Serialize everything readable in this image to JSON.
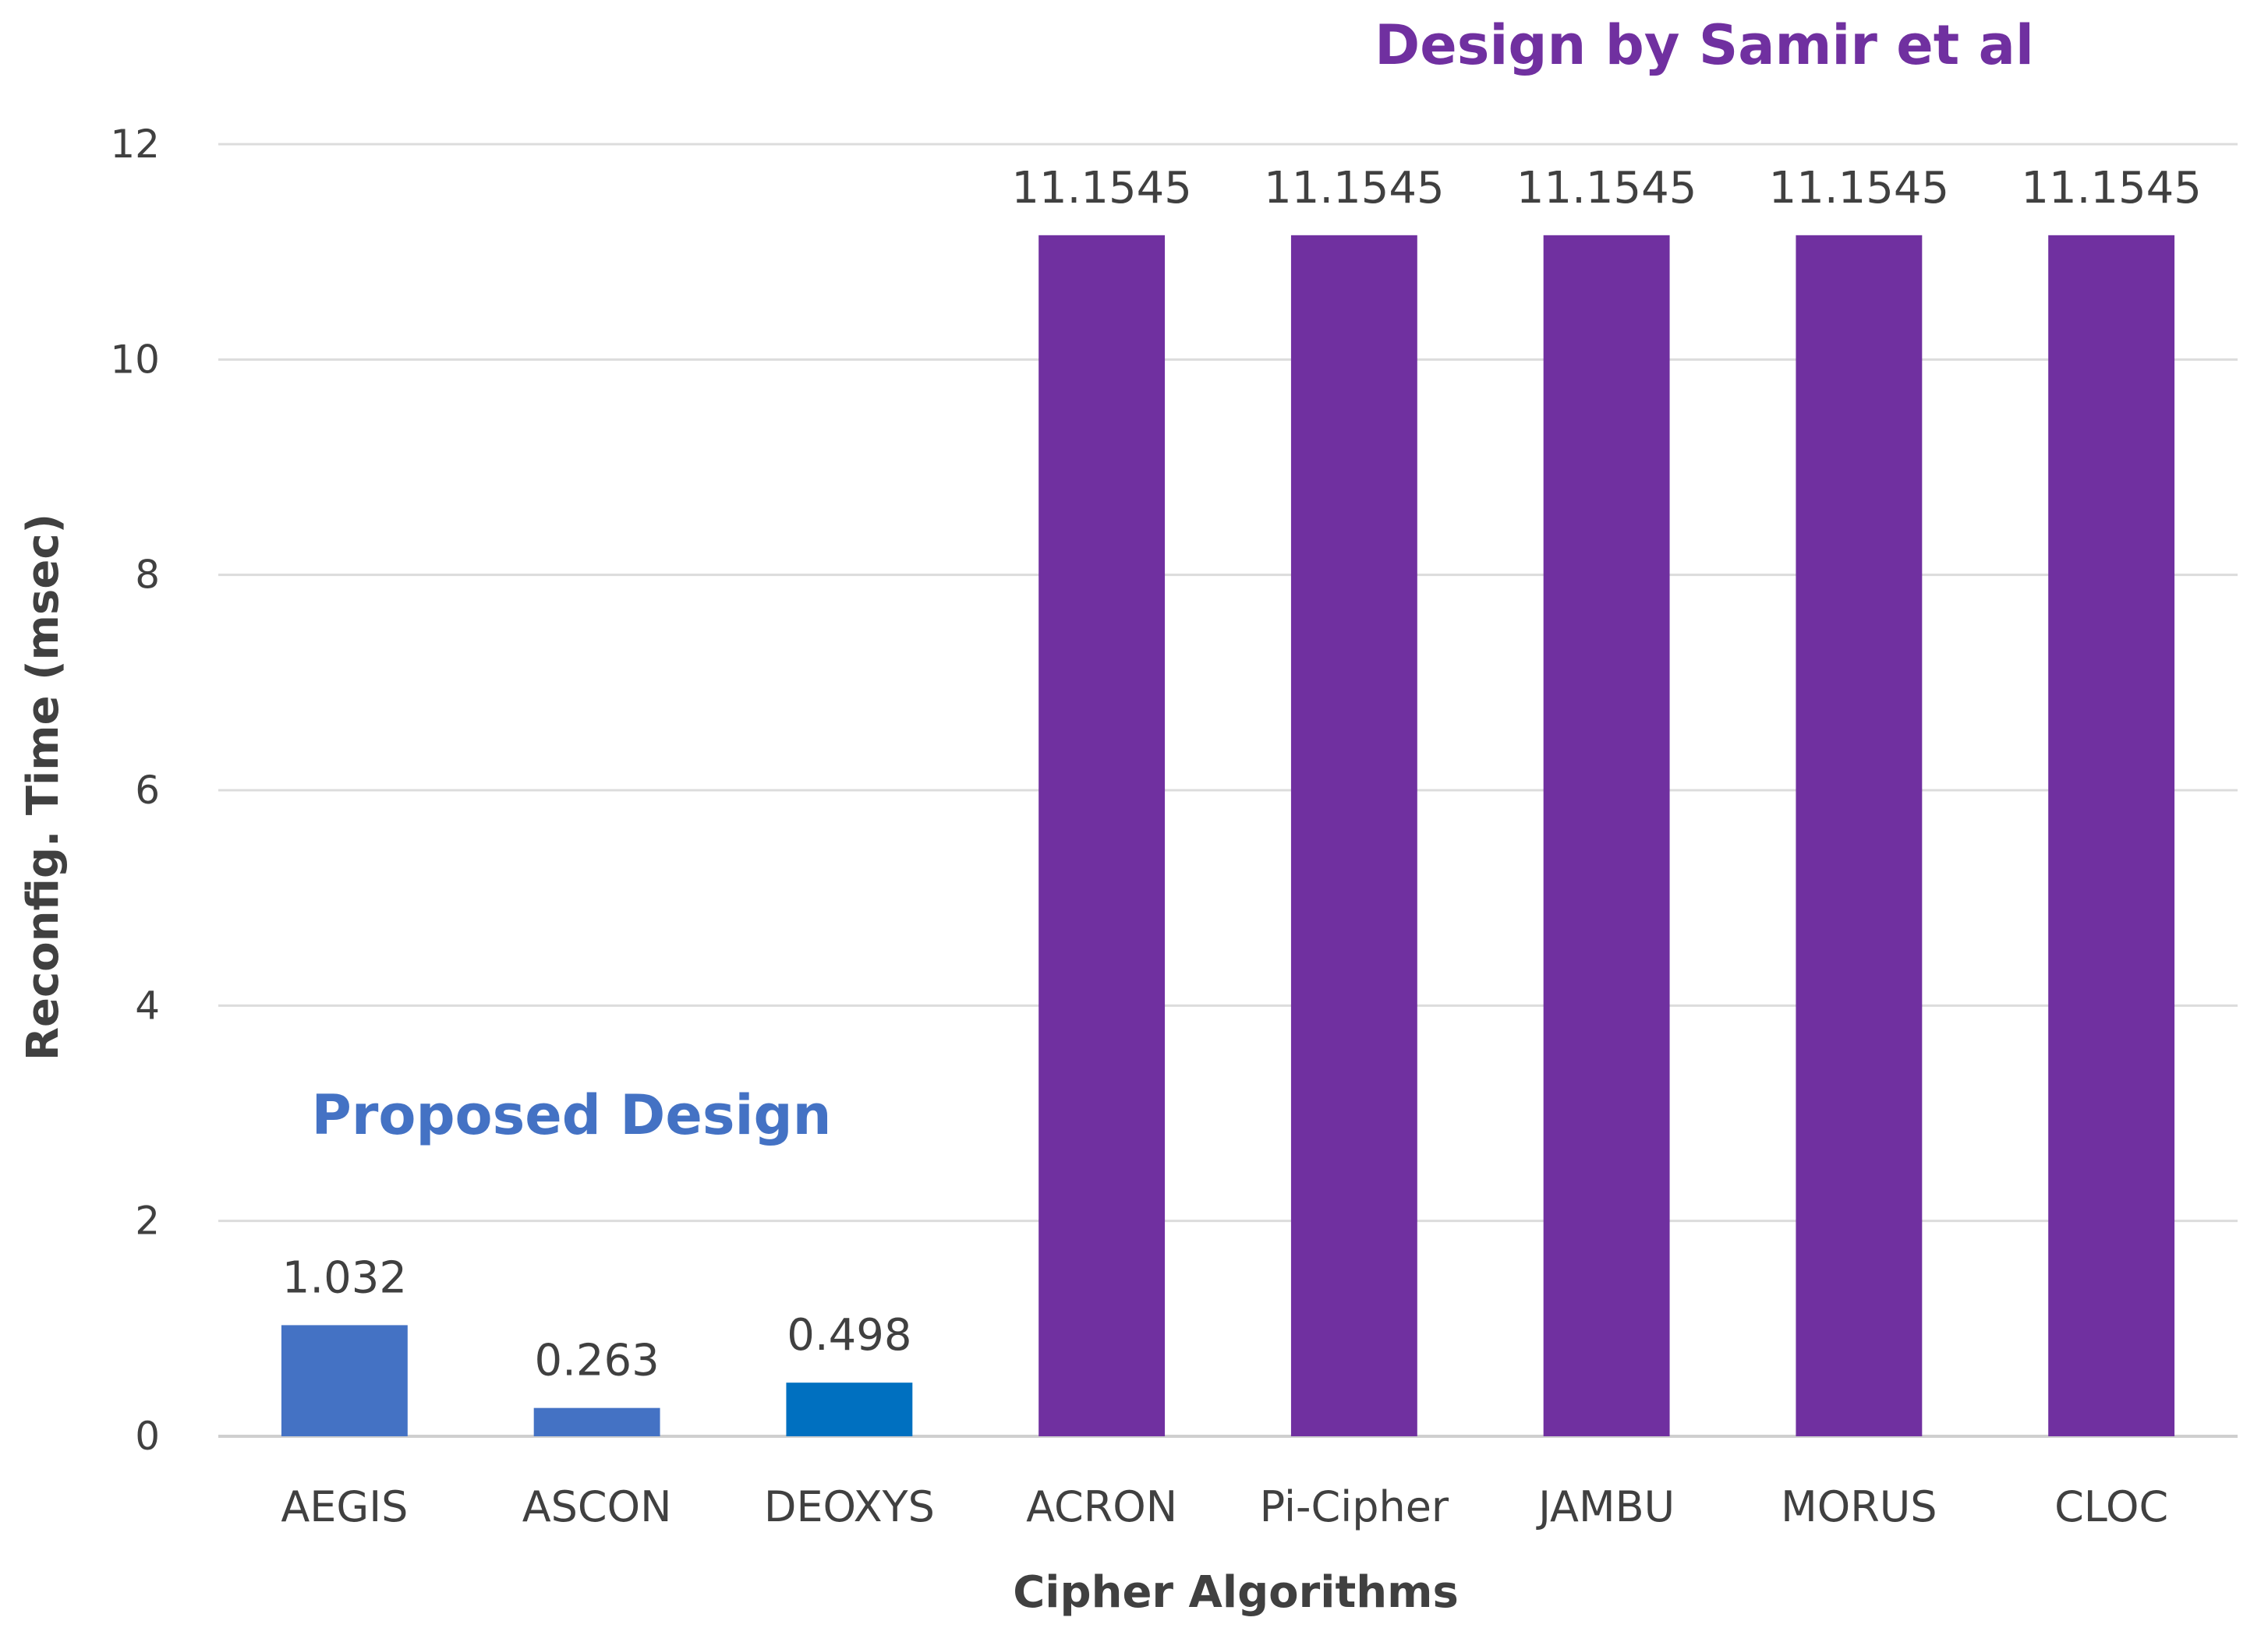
{
  "chart_data": {
    "type": "bar",
    "title": "",
    "xlabel": "Cipher Algorithms",
    "ylabel": "Reconfig. Time (msec)",
    "ylim": [
      0,
      12
    ],
    "yticks": [
      0,
      2,
      4,
      6,
      8,
      10,
      12
    ],
    "grid": true,
    "categories": [
      "AEGIS",
      "ASCON",
      "DEOXYS",
      "ACRON",
      "Pi-Cipher",
      "JAMBU",
      "MORUS",
      "CLOC"
    ],
    "values": [
      1.032,
      0.263,
      0.498,
      11.1545,
      11.1545,
      11.1545,
      11.1545,
      11.1545
    ],
    "value_labels": [
      "1.032",
      "0.263",
      "0.498",
      "11.1545",
      "11.1545",
      "11.1545",
      "11.1545",
      "11.1545"
    ],
    "bar_colors": [
      "#4472c4",
      "#4472c4",
      "#0070c0",
      "#7030a0",
      "#7030a0",
      "#7030a0",
      "#7030a0",
      "#7030a0"
    ],
    "annotations": [
      {
        "text": "Proposed Design",
        "color": "#4472c4"
      },
      {
        "text": "Design by Samir et al",
        "color": "#7030a0"
      }
    ]
  }
}
